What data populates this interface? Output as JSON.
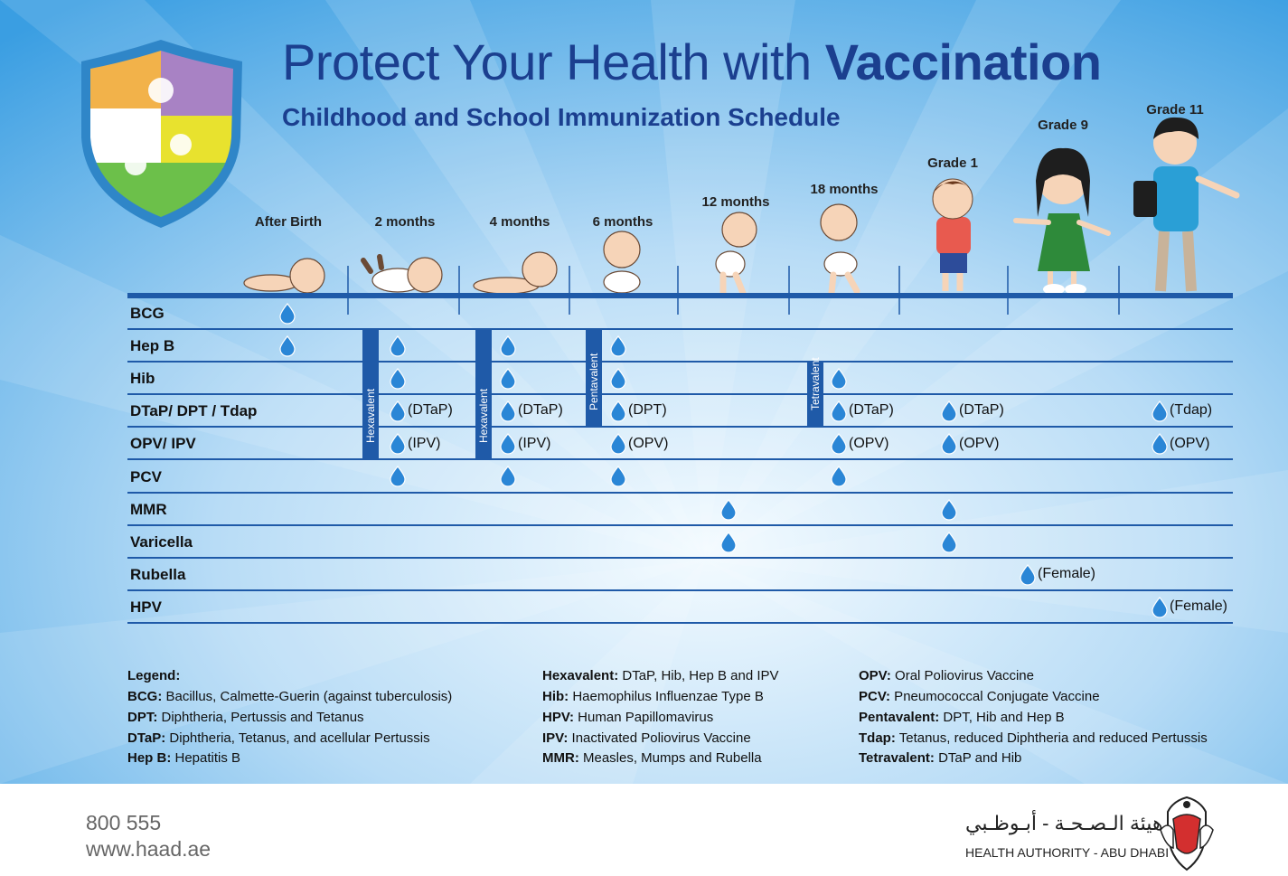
{
  "header": {
    "title_plain": "Protect Your Health with ",
    "title_bold": "Vaccination",
    "subtitle": "Childhood and School Immunization Schedule"
  },
  "ages": [
    "After Birth",
    "2 months",
    "4 months",
    "6 months",
    "12 months",
    "18 months",
    "Grade 1",
    "Grade 9",
    "Grade 11"
  ],
  "vaccines": [
    "BCG",
    "Hep B",
    "Hib",
    "DTaP/ DPT / Tdap",
    "OPV/ IPV",
    "PCV",
    "MMR",
    "Varicella",
    "Rubella",
    "HPV"
  ],
  "combo_labels": [
    "Hexavalent",
    "Hexavalent",
    "Pentavalent",
    "Tetravalent"
  ],
  "schedule_notes": {
    "dtap_2m": "(DTaP)",
    "ipv_2m": "(IPV)",
    "dtap_4m": "(DTaP)",
    "ipv_4m": "(IPV)",
    "dpt_6m": "(DPT)",
    "opv_6m": "(OPV)",
    "dtap_18m": "(DTaP)",
    "opv_18m": "(OPV)",
    "dtap_g1": "(DTaP)",
    "opv_g1": "(OPV)",
    "rubella_g9": "(Female)",
    "tdap_g11": "(Tdap)",
    "opv_g11": "(OPV)",
    "hpv_g11": "(Female)"
  },
  "legend": {
    "heading": "Legend:",
    "col1": [
      {
        "abbr": "BCG:",
        "text": " Bacillus, Calmette-Guerin (against tuberculosis)"
      },
      {
        "abbr": "DPT:",
        "text": " Diphtheria, Pertussis and Tetanus"
      },
      {
        "abbr": "DTaP:",
        "text": " Diphtheria, Tetanus, and acellular Pertussis"
      },
      {
        "abbr": "Hep B:",
        "text": " Hepatitis B"
      }
    ],
    "col2": [
      {
        "abbr": "Hexavalent:",
        "text": " DTaP, Hib, Hep B and IPV"
      },
      {
        "abbr": "Hib:",
        "text": " Haemophilus Influenzae Type B"
      },
      {
        "abbr": "HPV:",
        "text": " Human Papillomavirus"
      },
      {
        "abbr": "IPV:",
        "text": " Inactivated Poliovirus Vaccine"
      },
      {
        "abbr": "MMR:",
        "text": " Measles, Mumps and Rubella"
      }
    ],
    "col3": [
      {
        "abbr": "OPV:",
        "text": " Oral Poliovirus Vaccine"
      },
      {
        "abbr": "PCV:",
        "text": " Pneumococcal Conjugate Vaccine"
      },
      {
        "abbr": "Pentavalent:",
        "text": " DPT, Hib and Hep B"
      },
      {
        "abbr": "Tdap:",
        "text": " Tetanus, reduced Diphtheria and reduced Pertussis"
      },
      {
        "abbr": "Tetravalent:",
        "text": " DTaP and Hib"
      }
    ]
  },
  "footer": {
    "phone": "800 555",
    "website": "www.haad.ae",
    "authority_ar": "هيئة الـصـحـة - أبـوظـبي",
    "authority_en": "HEALTH AUTHORITY - ABU DHABI"
  },
  "colors": {
    "title": "#1b3f8f",
    "line": "#1f5aa8",
    "drop": "#2a86d6",
    "bg_light": "#eaf5fd",
    "bg_dark": "#3a9ee2"
  },
  "icons": {
    "dose": "water-drop-icon",
    "logo": "puzzle-shield-icon",
    "emblem": "falcon-emblem-icon"
  }
}
